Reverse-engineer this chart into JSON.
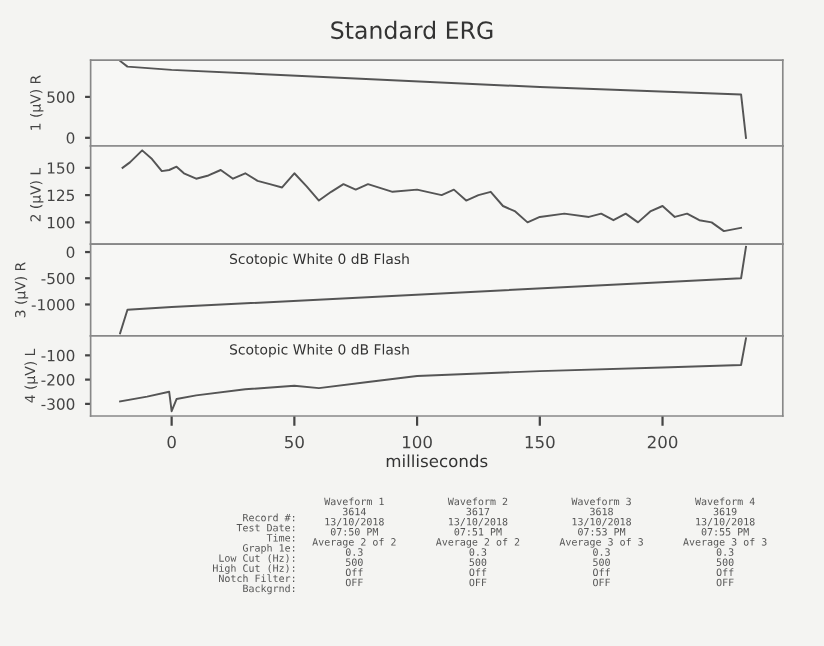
{
  "chart_data": [
    {
      "type": "line",
      "title": "Standard ERG",
      "ylabel": "1 (µV) R",
      "color": "#555555",
      "x": [
        -21,
        -18,
        0,
        150,
        232,
        234
      ],
      "values": [
        940,
        870,
        830,
        620,
        530,
        0
      ],
      "xlim": [
        -33,
        249
      ],
      "ylim": [
        -100,
        950
      ],
      "yticks": [
        0,
        500
      ],
      "tick_labels": "y",
      "grid": false
    },
    {
      "type": "line",
      "ylabel": "2 (µV) L",
      "color": "#555555",
      "x": [
        -20,
        -17,
        -12,
        -8,
        -4,
        -1,
        2,
        5,
        10,
        15,
        20,
        25,
        30,
        35,
        40,
        45,
        50,
        55,
        60,
        65,
        70,
        75,
        80,
        90,
        100,
        110,
        115,
        120,
        125,
        130,
        135,
        140,
        145,
        150,
        160,
        170,
        175,
        180,
        185,
        190,
        195,
        200,
        205,
        210,
        215,
        220,
        225,
        232
      ],
      "values": [
        150,
        155,
        166,
        158,
        147,
        148,
        151,
        145,
        140,
        143,
        148,
        140,
        145,
        138,
        135,
        132,
        145,
        133,
        120,
        128,
        135,
        130,
        135,
        128,
        130,
        125,
        130,
        120,
        125,
        128,
        115,
        110,
        100,
        105,
        108,
        105,
        108,
        102,
        108,
        100,
        110,
        115,
        105,
        108,
        102,
        100,
        92,
        95
      ],
      "xlim": [
        -33,
        249
      ],
      "ylim": [
        80,
        170
      ],
      "yticks": [
        100,
        125,
        150
      ],
      "tick_labels": "y",
      "grid": false
    },
    {
      "type": "line",
      "ylabel": "3 (µV) R",
      "color": "#555555",
      "x": [
        -21,
        -18,
        0,
        232,
        234
      ],
      "values": [
        -1550,
        -1100,
        -1050,
        -500,
        100
      ],
      "xlim": [
        -33,
        249
      ],
      "ylim": [
        -1600,
        150
      ],
      "yticks": [
        -1000,
        -500,
        0
      ],
      "tick_labels": "y",
      "grid": false,
      "annotations": [
        "Scotopic White 0 dB Flash"
      ]
    },
    {
      "type": "line",
      "ylabel": "4 (µV) L",
      "xlabel": "milliseconds",
      "color": "#555555",
      "x": [
        -21,
        -10,
        -1,
        0,
        2,
        10,
        30,
        50,
        60,
        80,
        100,
        150,
        200,
        232,
        234
      ],
      "values": [
        -290,
        -270,
        -250,
        -330,
        -280,
        -265,
        -240,
        -225,
        -235,
        -210,
        -185,
        -165,
        -150,
        -140,
        -30
      ],
      "xlim": [
        -33,
        249
      ],
      "xticks": [
        0,
        50,
        100,
        150,
        200
      ],
      "ylim": [
        -350,
        -20
      ],
      "yticks": [
        -300,
        -200,
        -100
      ],
      "grid": false,
      "annotations": [
        "Scotopic White 0 dB Flash",
        "Record #:\nTest Date:\nTime:\nGraph 1e:\nLow Cut (Hz):\nHigh Cut (Hz):\nNotch Filter:\nBackgrnd:",
        "Waveform 1\n3614\n13/10/2018\n07:50 PM\nAverage 2 of 2\n0.3\n500\nOff\nOFF",
        "Waveform 2\n3617\n13/10/2018\n07:51 PM\nAverage 2 of 2\n0.3\n500\nOff\nOFF",
        "Waveform 3\n3618\n13/10/2018\n07:53 PM\nAverage 3 of 3\n0.3\n500\nOff\nOFF",
        "Waveform 4\n3619\n13/10/2018\n07:55 PM\nAverage 3 of 3\n0.3\n500\nOff\nOFF"
      ]
    }
  ]
}
